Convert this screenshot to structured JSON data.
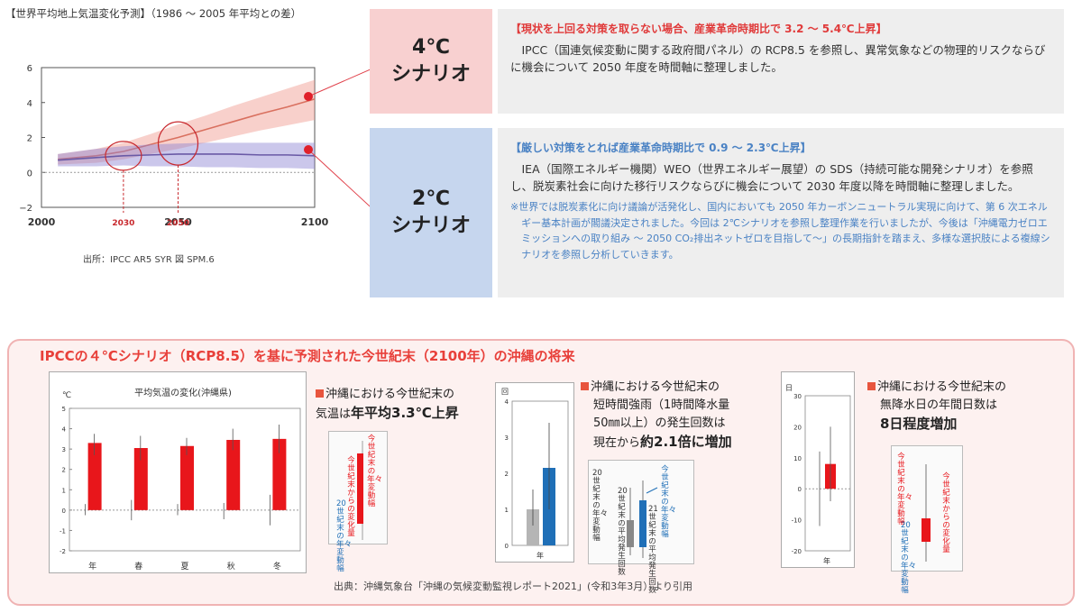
{
  "top": {
    "figure_title": "【世界平均地上気温変化予測】（1986 〜 2005 年平均との差）",
    "source": "出所：IPCC AR5 SYR 図 SPM.6",
    "chart_data": {
      "type": "line",
      "x_ticks": [
        "2000",
        "2050",
        "2100"
      ],
      "y_ticks": [
        "6",
        "4",
        "2",
        "0",
        "−2"
      ],
      "ylim": [
        -2,
        6
      ],
      "xlim": [
        2000,
        2100
      ],
      "marker_labels": [
        "2030",
        "2050"
      ],
      "series": [
        {
          "x": [
            2006,
            2020,
            2030,
            2040,
            2050,
            2060,
            2070,
            2080,
            2090,
            2100
          ],
          "values": [
            0.75,
            0.95,
            1.2,
            1.6,
            2.0,
            2.45,
            2.9,
            3.35,
            3.75,
            4.2
          ],
          "band_low": [
            0.45,
            0.55,
            0.75,
            1.05,
            1.35,
            1.7,
            2.05,
            2.4,
            2.7,
            3.0
          ],
          "band_high": [
            1.05,
            1.35,
            1.7,
            2.2,
            2.75,
            3.25,
            3.8,
            4.3,
            4.8,
            5.3
          ],
          "color": "#d9705f"
        },
        {
          "x": [
            2006,
            2020,
            2030,
            2040,
            2050,
            2060,
            2070,
            2080,
            2090,
            2100
          ],
          "values": [
            0.7,
            0.85,
            0.95,
            1.0,
            1.05,
            1.05,
            1.05,
            1.0,
            1.0,
            0.95
          ],
          "band_low": [
            0.35,
            0.35,
            0.4,
            0.35,
            0.35,
            0.3,
            0.3,
            0.25,
            0.25,
            0.2
          ],
          "band_high": [
            1.05,
            1.35,
            1.5,
            1.6,
            1.65,
            1.7,
            1.7,
            1.7,
            1.7,
            1.7
          ],
          "color": "#6a5aa6"
        }
      ]
    }
  },
  "scenario4": {
    "title_line1": "4℃",
    "title_line2": "シナリオ",
    "heading": "【現状を上回る対策を取らない場合、産業革命時期比で 3.2 〜 5.4℃上昇】",
    "body": "IPCC（国連気候変動に関する政府間パネル）の RCP8.5 を参照し、異常気象などの物理的リスクならびに機会について 2050 年度を時間軸に整理しました。"
  },
  "scenario2": {
    "title_line1": "2℃",
    "title_line2": "シナリオ",
    "heading": "【厳しい対策をとれば産業革命時期比で 0.9 〜 2.3℃上昇】",
    "body": "IEA（国際エネルギー機関）WEO（世界エネルギー展望）の SDS（持続可能な開発シナリオ）を参照し、脱炭素社会に向けた移行リスクならびに機会について 2030 年度以降を時間軸に整理しました。",
    "note": "※世界では脱炭素化に向け議論が活発化し、国内においても 2050 年カーボンニュートラル実現に向けて、第 6 次エネルギー基本計画が閣議決定されました。今回は 2℃シナリオを参照し整理作業を行いましたが、今後は「沖縄電力ゼロエミッションへの取り組み 〜 2050 CO₂排出ネットゼロを目指して〜」の長期指針を踏まえ、多様な選択肢による複線シナリオを参照し分析していきます。"
  },
  "bottom": {
    "title": "IPCCの４℃シナリオ（RCP8.5）を基に予測された今世紀末（2100年）の沖縄の将来",
    "source": "出典：沖縄気象台「沖縄の気候変動監視レポート2021」(令和3年3月）より引用",
    "caption1_line1": "沖縄における今世紀末の",
    "caption1_line2a": "気温は",
    "caption1_line2b": "年平均3.3℃上昇",
    "caption2_line1": "沖縄における今世紀末の",
    "caption2_line2": "短時間強雨（1時間降水量",
    "caption2_line3": "50㎜以上）の発生回数は",
    "caption2_line4a": "現在から",
    "caption2_line4b": "約2.1倍に増加",
    "caption3_line1": "沖縄における今世紀末の",
    "caption3_line2": "無降水日の年間日数は",
    "caption3_line3": "8日程度増加",
    "legend_future_change": "今世紀末からの変化量",
    "legend_future_range": "今世紀末の年々変動幅",
    "legend_20c_range": "20世紀末の年々変動幅",
    "legend_20c_mean": "20世紀末の平均発生回数",
    "legend_21c_mean": "21世紀末の平均発生回数",
    "temp_chart": {
      "type": "bar",
      "title": "平均気温の変化(沖縄県)",
      "unit": "℃",
      "categories": [
        "年",
        "春",
        "夏",
        "秋",
        "冬"
      ],
      "values": [
        3.3,
        3.05,
        3.15,
        3.45,
        3.5
      ],
      "err_low": [
        2.7,
        2.45,
        2.7,
        2.95,
        2.8
      ],
      "err_high": [
        3.75,
        3.65,
        3.55,
        4.0,
        4.2
      ],
      "base_low": [
        -0.25,
        -0.5,
        -0.25,
        -0.45,
        -0.75
      ],
      "base_high": [
        0.3,
        0.5,
        0.3,
        0.35,
        0.75
      ],
      "ylim": [
        -2,
        5
      ],
      "y_ticks": [
        "5",
        "4",
        "3",
        "2",
        "1",
        "0",
        "-1",
        "-2"
      ],
      "color": "#e8161b"
    },
    "rain_chart": {
      "type": "bar",
      "unit": "回",
      "categories": [
        "年"
      ],
      "series": [
        {
          "values": [
            1.0
          ],
          "color": "#b5b5b5",
          "err": [
            0.55,
            1.55
          ]
        },
        {
          "values": [
            2.15
          ],
          "color": "#1f6fb7",
          "err": [
            1.0,
            3.4
          ]
        }
      ],
      "ylim": [
        0,
        4
      ],
      "y_ticks": [
        "4",
        "3",
        "2",
        "1",
        "0"
      ]
    },
    "dry_chart": {
      "type": "bar",
      "unit": "日",
      "categories": [
        "年"
      ],
      "values": [
        8
      ],
      "box": [
        0,
        8
      ],
      "err": [
        -4,
        20
      ],
      "base_err": [
        -12,
        12
      ],
      "color": "#e8161b",
      "ylim": [
        -20,
        30
      ],
      "y_ticks": [
        "30",
        "20",
        "10",
        "0",
        "-10",
        "-20"
      ]
    }
  }
}
